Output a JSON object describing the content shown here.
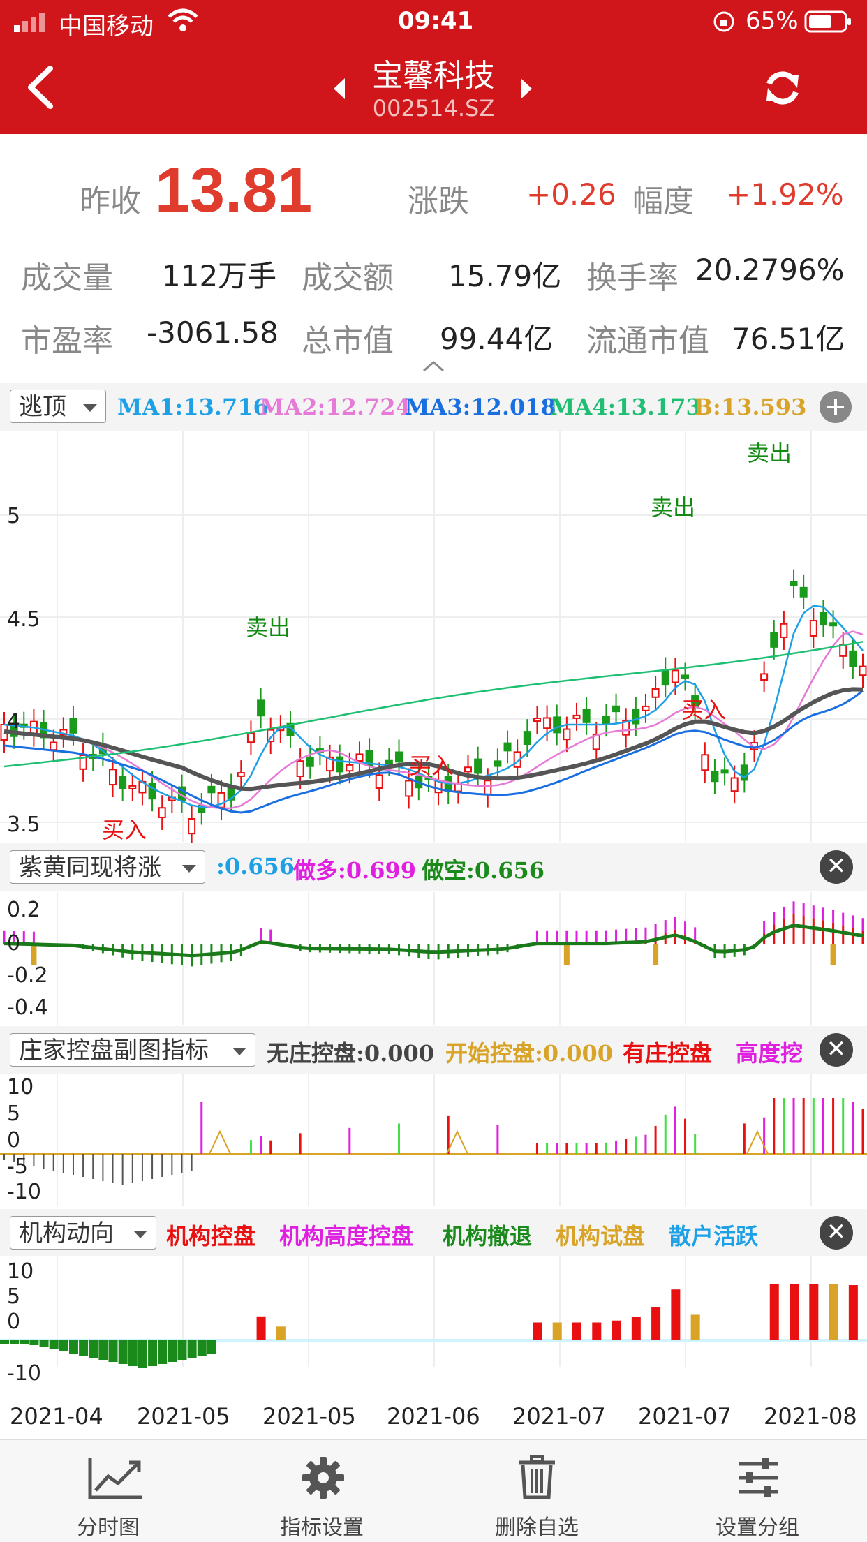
{
  "status": {
    "carrier": "中国移动",
    "time": "09:41",
    "battery": "65%"
  },
  "header": {
    "name": "宝馨科技",
    "code": "002514.SZ"
  },
  "quote": {
    "prev_close_label": "昨收",
    "prev_close": "13.81",
    "change_label": "涨跌",
    "change": "+0.26",
    "amp_label": "幅度",
    "amp": "+1.92%"
  },
  "stats": [
    [
      {
        "label": "成交量",
        "value": "112万手"
      },
      {
        "label": "成交额",
        "value": "15.79亿"
      },
      {
        "label": "换手率",
        "value": "20.2796%"
      }
    ],
    [
      {
        "label": "市盈率",
        "value": "-3061.58"
      },
      {
        "label": "总市值",
        "value": "99.44亿"
      },
      {
        "label": "流通市值",
        "value": "76.51亿"
      }
    ]
  ],
  "main_panel": {
    "selector": "逃顶",
    "ma": [
      {
        "label": "MA1:13.716",
        "color": "#1ea0e6"
      },
      {
        "label": "MA2:12.724",
        "color": "#e67ad6"
      },
      {
        "label": "MA3:12.018",
        "color": "#1a6fe0"
      },
      {
        "label": "MA4:13.173",
        "color": "#1fbf73"
      },
      {
        "label": "B:13.593",
        "color": "#d8a326"
      }
    ],
    "y_ticks": [
      "5",
      "4.5",
      "4",
      "3.5"
    ],
    "signals": {
      "sell": "卖出",
      "buy": "买入"
    }
  },
  "panel2": {
    "selector": "紫黄同现将涨",
    "items": [
      {
        "label": ":0.656",
        "color": "#1ea0e6"
      },
      {
        "label": "做多:0.699",
        "color": "#e020e0"
      },
      {
        "label": "做空:0.656",
        "color": "#1a8a1a"
      }
    ],
    "y_ticks": [
      "0.2",
      "0",
      "-0.2",
      "-0.4"
    ]
  },
  "panel3": {
    "selector": "庄家控盘副图指标",
    "items": [
      {
        "label": "无庄控盘:0.000",
        "color": "#444444"
      },
      {
        "label": "开始控盘:0.000",
        "color": "#d8a326"
      },
      {
        "label": "有庄控盘",
        "color": "#e81010"
      },
      {
        "label": "高度挖",
        "color": "#e020e0"
      }
    ],
    "y_ticks": [
      "10",
      "5",
      "0",
      "-5",
      "-10"
    ]
  },
  "panel4": {
    "selector": "机构动向",
    "items": [
      {
        "label": "机构控盘",
        "color": "#e81010"
      },
      {
        "label": "机构高度控盘",
        "color": "#e020e0"
      },
      {
        "label": "机构撤退",
        "color": "#1a8a1a"
      },
      {
        "label": "机构试盘",
        "color": "#d8a326"
      },
      {
        "label": "散户活跃",
        "color": "#1ea0e6"
      }
    ],
    "y_ticks": [
      "10",
      "5",
      "0",
      "-10"
    ]
  },
  "x_axis": [
    "2021-04",
    "2021-05",
    "2021-05",
    "2021-06",
    "2021-07",
    "2021-07",
    "2021-08"
  ],
  "bottom_nav": [
    {
      "label": "分时图",
      "icon": "line-chart-icon"
    },
    {
      "label": "指标设置",
      "icon": "gear-icon"
    },
    {
      "label": "删除自选",
      "icon": "trash-icon"
    },
    {
      "label": "设置分组",
      "icon": "sliders-icon"
    }
  ]
}
